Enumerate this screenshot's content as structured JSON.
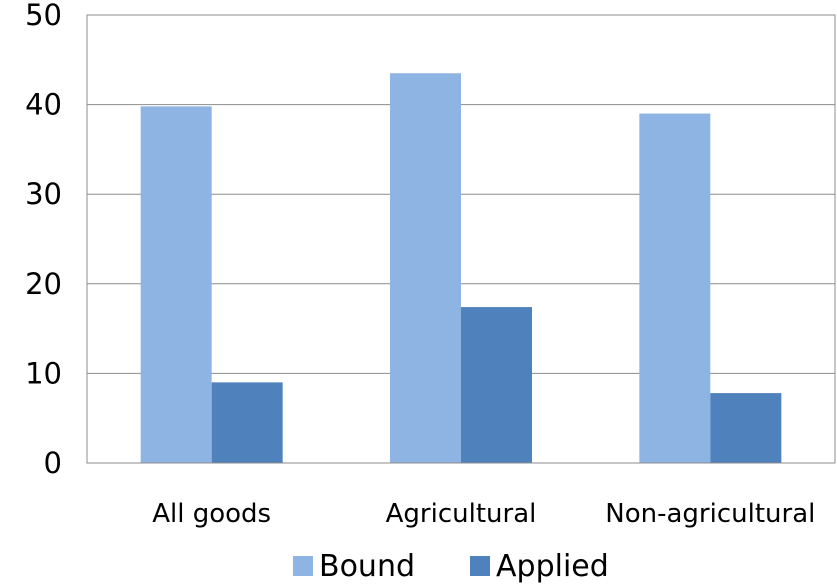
{
  "chart_data": {
    "type": "bar",
    "categories": [
      "All goods",
      "Agricultural",
      "Non-agricultural"
    ],
    "series": [
      {
        "name": "Bound",
        "values": [
          39.8,
          43.5,
          39.0
        ],
        "color": "#8EB4E3"
      },
      {
        "name": "Applied",
        "values": [
          9.0,
          17.4,
          7.8
        ],
        "color": "#4F81BD"
      }
    ],
    "ylim": [
      0,
      50
    ],
    "yticks": [
      "0",
      "10",
      "20",
      "30",
      "40",
      "50"
    ],
    "grid": true,
    "legend_position": "bottom",
    "title": "",
    "xlabel": "",
    "ylabel": ""
  }
}
